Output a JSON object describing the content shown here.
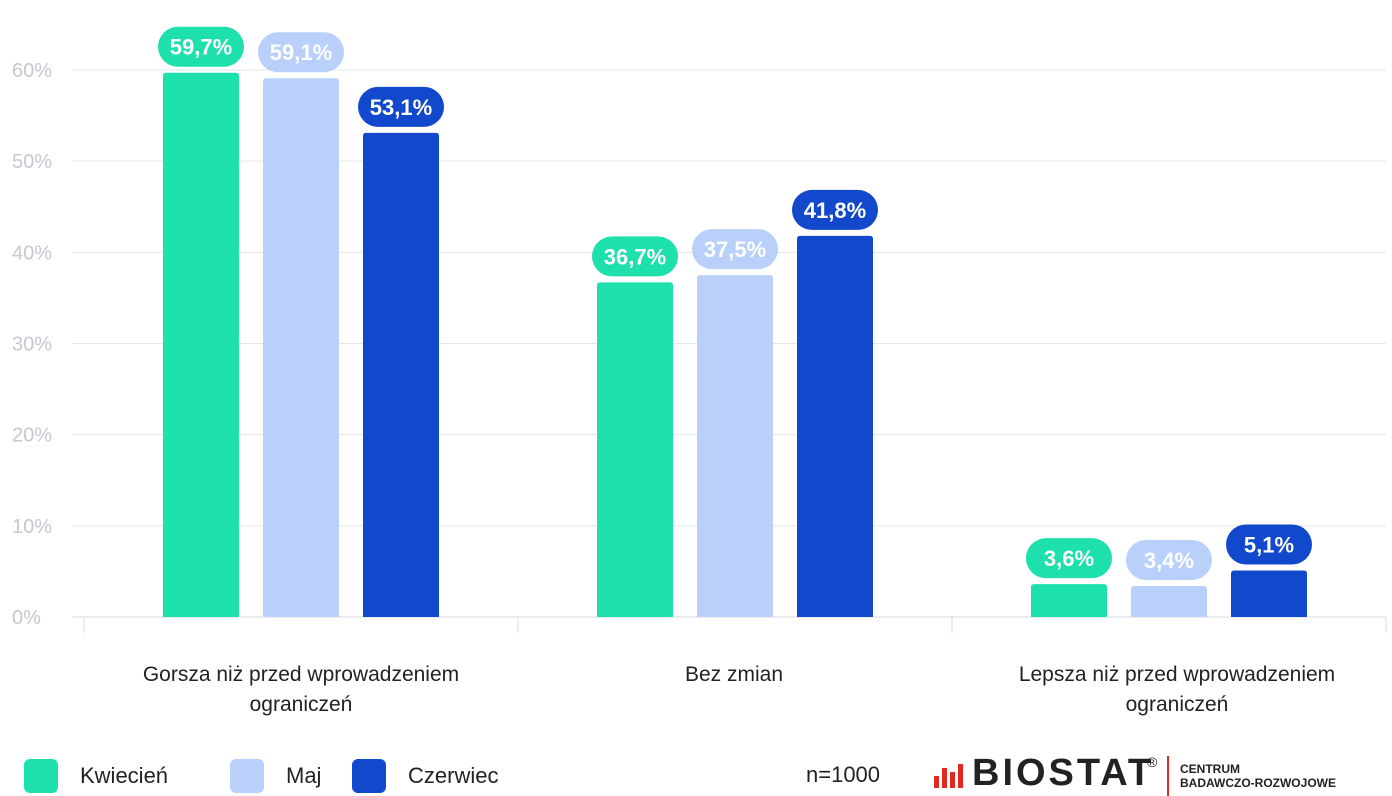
{
  "chart_data": {
    "type": "bar",
    "categories": [
      "Gorsza niż przed wprowadzeniem ograniczeń",
      "Bez zmian",
      "Lepsza niż przed wprowadzeniem ograniczeń"
    ],
    "series": [
      {
        "name": "Kwiecień",
        "color": "#1de0ad",
        "label_text_color": "#ffffff",
        "values": [
          59.7,
          36.7,
          3.6
        ],
        "labels": [
          "59,7%",
          "36,7%",
          "3,6%"
        ]
      },
      {
        "name": "Maj",
        "color": "#b9d0fb",
        "label_text_color": "#ffffff",
        "values": [
          59.1,
          37.5,
          3.4
        ],
        "labels": [
          "59,1%",
          "37,5%",
          "3,4%"
        ]
      },
      {
        "name": "Czerwiec",
        "color": "#1148cc",
        "label_text_color": "#ffffff",
        "values": [
          53.1,
          41.8,
          5.1
        ],
        "labels": [
          "53,1%",
          "41,8%",
          "5,1%"
        ]
      }
    ],
    "y_ticks": [
      {
        "value": 0,
        "label": "0%"
      },
      {
        "value": 10,
        "label": "10%"
      },
      {
        "value": 20,
        "label": "20%"
      },
      {
        "value": 30,
        "label": "30%"
      },
      {
        "value": 40,
        "label": "40%"
      },
      {
        "value": 50,
        "label": "50%"
      },
      {
        "value": 60,
        "label": "60%"
      }
    ],
    "ylim": [
      0,
      60
    ],
    "grid": true,
    "legend_position": "bottom-left",
    "title": "",
    "xlabel": "",
    "ylabel": ""
  },
  "categories_display": [
    {
      "line1": "Gorsza niż przed wprowadzeniem",
      "line2": "ograniczeń"
    },
    {
      "line1": "Bez zmian",
      "line2": ""
    },
    {
      "line1": "Lepsza niż przed wprowadzeniem",
      "line2": "ograniczeń"
    }
  ],
  "legend": [
    {
      "label": "Kwiecień",
      "color": "#1de0ad"
    },
    {
      "label": "Maj",
      "color": "#b9d0fb"
    },
    {
      "label": "Czerwiec",
      "color": "#1148cc"
    }
  ],
  "sample_note": "n=1000",
  "brand": {
    "name": "BIOSTAT",
    "registered_mark": "®",
    "subtitle_line1": "CENTRUM",
    "subtitle_line2": "BADAWCZO-ROZWOJOWE",
    "accent_color": "#e0291f"
  }
}
